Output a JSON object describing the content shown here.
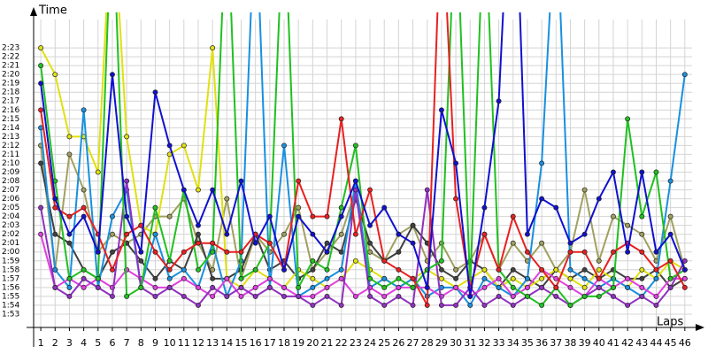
{
  "chart_data": {
    "type": "line",
    "y_label": "Time",
    "x_label": "Laps",
    "x": [
      1,
      2,
      3,
      4,
      5,
      6,
      7,
      8,
      9,
      10,
      11,
      12,
      13,
      14,
      15,
      16,
      17,
      18,
      19,
      20,
      21,
      22,
      23,
      24,
      25,
      26,
      27,
      28,
      29,
      30,
      31,
      32,
      33,
      34,
      35,
      36,
      37,
      38,
      39,
      40,
      41,
      42,
      43,
      44,
      45,
      46
    ],
    "xlim": [
      0.5,
      47
    ],
    "xticks": [
      1,
      2,
      3,
      4,
      5,
      6,
      7,
      8,
      9,
      10,
      11,
      12,
      13,
      14,
      15,
      16,
      17,
      18,
      19,
      20,
      21,
      22,
      23,
      24,
      25,
      26,
      27,
      28,
      29,
      30,
      31,
      32,
      33,
      34,
      35,
      36,
      37,
      38,
      39,
      40,
      41,
      42,
      43,
      44,
      45,
      46
    ],
    "ylim": [
      111.5,
      145.4
    ],
    "yticks": [
      {
        "value": 113,
        "label": "1:53"
      },
      {
        "value": 114,
        "label": "1:54"
      },
      {
        "value": 115,
        "label": "1:55"
      },
      {
        "value": 116,
        "label": "1:56"
      },
      {
        "value": 117,
        "label": "1:57"
      },
      {
        "value": 118,
        "label": "1:58"
      },
      {
        "value": 119,
        "label": "1:59"
      },
      {
        "value": 120,
        "label": "2:00"
      },
      {
        "value": 121,
        "label": "2:01"
      },
      {
        "value": 122,
        "label": "2:02"
      },
      {
        "value": 123,
        "label": "2:03"
      },
      {
        "value": 124,
        "label": "2:04"
      },
      {
        "value": 125,
        "label": "2:05"
      },
      {
        "value": 126,
        "label": "2:06"
      },
      {
        "value": 127,
        "label": "2:07"
      },
      {
        "value": 128,
        "label": "2:08"
      },
      {
        "value": 129,
        "label": "2:09"
      },
      {
        "value": 130,
        "label": "2:10"
      },
      {
        "value": 131,
        "label": "2:11"
      },
      {
        "value": 132,
        "label": "2:12"
      },
      {
        "value": 133,
        "label": "2:13"
      },
      {
        "value": 134,
        "label": "2:14"
      },
      {
        "value": 135,
        "label": "2:15"
      },
      {
        "value": 136,
        "label": "2:16"
      },
      {
        "value": 137,
        "label": "2:17"
      },
      {
        "value": 138,
        "label": "2:18"
      },
      {
        "value": 139,
        "label": "2:19"
      },
      {
        "value": 140,
        "label": "2:20"
      },
      {
        "value": 141,
        "label": "2:21"
      },
      {
        "value": 142,
        "label": "2:22"
      },
      {
        "value": 143,
        "label": "2:23"
      }
    ],
    "grid": true,
    "series": [
      {
        "color": "#a0a060",
        "values": [
          132,
          118,
          131,
          127,
          120,
          122,
          121,
          122,
          124,
          124,
          126,
          121,
          118,
          126,
          117,
          122,
          120,
          122,
          125,
          118,
          120,
          122,
          127,
          120,
          119,
          122,
          123,
          119,
          121,
          118,
          119,
          122,
          118,
          121,
          119,
          121,
          118,
          120,
          127,
          119,
          124,
          123,
          122,
          119,
          124,
          118
        ]
      },
      {
        "color": "#404040",
        "values": [
          130,
          122,
          121,
          118,
          117,
          120,
          121,
          119,
          117,
          119,
          118,
          122,
          117,
          117,
          118,
          122,
          118,
          119,
          117,
          118,
          121,
          120,
          126,
          121,
          119,
          120,
          123,
          121,
          118,
          117,
          119,
          118,
          116,
          118,
          117,
          116,
          118,
          117,
          118,
          117,
          118,
          117,
          117,
          118,
          116,
          117
        ]
      },
      {
        "color": "#e0e010",
        "values": [
          143,
          140,
          133,
          133,
          129,
          160,
          133,
          123,
          122,
          131,
          132,
          127,
          143,
          117,
          116,
          118,
          117,
          116,
          118,
          117,
          116,
          117,
          119,
          118,
          117,
          116,
          117,
          118,
          117,
          116,
          117,
          118,
          116,
          117,
          116,
          117,
          118,
          117,
          116,
          118,
          117,
          116,
          118,
          117,
          119,
          118
        ]
      },
      {
        "color": "#1890e0",
        "values": [
          134,
          118,
          116,
          136,
          116,
          124,
          127,
          116,
          122,
          117,
          118,
          116,
          121,
          115,
          119,
          160,
          116,
          132,
          115,
          116,
          117,
          118,
          128,
          116,
          117,
          116,
          117,
          115,
          116,
          116,
          114,
          117,
          116,
          115,
          117,
          130,
          160,
          118,
          117,
          116,
          117,
          116,
          115,
          117,
          128,
          140
        ]
      },
      {
        "color": "#e040e0",
        "values": [
          122,
          116,
          117,
          116,
          117,
          116,
          118,
          117,
          116,
          116,
          117,
          116,
          115,
          117,
          115,
          116,
          117,
          116,
          115,
          115,
          116,
          117,
          115,
          116,
          115,
          116,
          116,
          116,
          115,
          116,
          115,
          116,
          117,
          115,
          116,
          118,
          117,
          116,
          115,
          117,
          116,
          117,
          116,
          115,
          117,
          117
        ]
      },
      {
        "color": "#9030c0",
        "values": [
          125,
          116,
          115,
          117,
          116,
          115,
          128,
          116,
          115,
          116,
          115,
          114,
          116,
          115,
          116,
          115,
          116,
          115,
          115,
          114,
          115,
          114,
          127,
          115,
          114,
          115,
          114,
          127,
          114,
          114,
          116,
          114,
          115,
          114,
          115,
          116,
          115,
          114,
          115,
          116,
          115,
          114,
          115,
          114,
          116,
          119
        ]
      },
      {
        "color": "#20c020",
        "values": [
          141,
          128,
          117,
          118,
          117,
          160,
          115,
          116,
          125,
          119,
          127,
          118,
          120,
          160,
          117,
          118,
          121,
          160,
          116,
          119,
          118,
          125,
          132,
          117,
          116,
          117,
          116,
          118,
          119,
          160,
          116,
          160,
          118,
          116,
          115,
          114,
          116,
          114,
          115,
          115,
          116,
          135,
          124,
          129,
          117,
          118
        ]
      },
      {
        "color": "#e82020",
        "values": [
          136,
          125,
          124,
          125,
          122,
          118,
          122,
          123,
          120,
          118,
          120,
          121,
          121,
          120,
          120,
          122,
          121,
          118,
          128,
          124,
          124,
          135,
          122,
          127,
          119,
          118,
          117,
          114,
          160,
          126,
          116,
          122,
          118,
          124,
          120,
          118,
          116,
          120,
          120,
          117,
          120,
          121,
          120,
          118,
          119,
          116
        ]
      },
      {
        "color": "#1010d0",
        "values": [
          139,
          126,
          122,
          124,
          120,
          140,
          124,
          120,
          138,
          132,
          127,
          123,
          127,
          122,
          128,
          121,
          124,
          118,
          124,
          122,
          120,
          124,
          128,
          123,
          125,
          122,
          121,
          116,
          136,
          130,
          115,
          125,
          137,
          170,
          122,
          126,
          125,
          121,
          122,
          126,
          129,
          120,
          129,
          120,
          122,
          118
        ]
      }
    ]
  }
}
